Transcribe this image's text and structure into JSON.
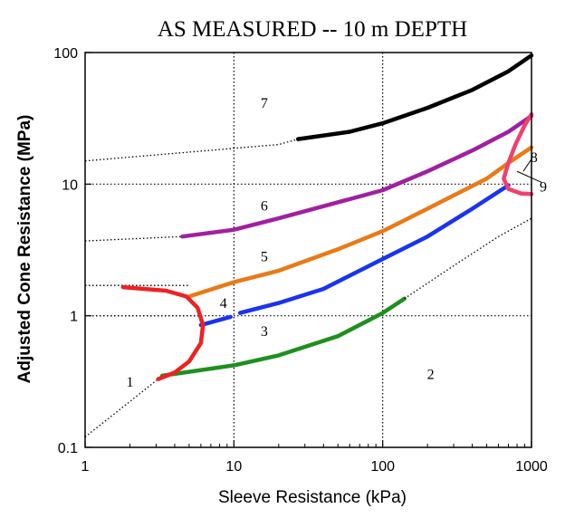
{
  "chart_data": {
    "type": "line",
    "title": "AS MEASURED -- 10 m DEPTH",
    "xlabel": "Sleeve Resistance  (kPa)",
    "ylabel": "Adjusted Cone Resistance  (MPa)",
    "xscale": "log",
    "yscale": "log",
    "xlim": [
      1,
      1000
    ],
    "ylim": [
      0.1,
      100
    ],
    "x_ticks": [
      "1",
      "10",
      "100",
      "1000"
    ],
    "y_ticks": [
      "0.1",
      "1",
      "10",
      "100"
    ],
    "grid": "dotted lines at decades (x = 10, 100; y = 1, 10)",
    "zone_labels": [
      {
        "text": "1",
        "x": 2.0,
        "y": 0.29
      },
      {
        "text": "2",
        "x": 210,
        "y": 0.33
      },
      {
        "text": "3",
        "x": 16,
        "y": 0.7
      },
      {
        "text": "4",
        "x": 8.5,
        "y": 1.15
      },
      {
        "text": "5",
        "x": 16,
        "y": 2.6
      },
      {
        "text": "6",
        "x": 16,
        "y": 6.3
      },
      {
        "text": "7",
        "x": 16,
        "y": 38
      },
      {
        "text": "8",
        "x": 1040,
        "y": 14.7
      },
      {
        "text": "9",
        "x": 1200,
        "y": 8.8
      }
    ],
    "series": [
      {
        "color": "#000000",
        "style": "dotted",
        "x": [
          1,
          20,
          27
        ],
        "y": [
          15,
          20,
          22
        ]
      },
      {
        "color": "#000000",
        "style": "solid",
        "x": [
          27,
          60,
          100,
          200,
          400,
          700,
          1000
        ],
        "y": [
          22,
          25,
          29,
          38,
          52,
          72,
          95
        ]
      },
      {
        "color": "#000000",
        "style": "dotted",
        "x": [
          1,
          4.5
        ],
        "y": [
          3.7,
          4.0
        ]
      },
      {
        "color": "#a020a0",
        "style": "solid",
        "x": [
          4.5,
          10,
          20,
          40,
          100,
          200,
          400,
          700,
          1000
        ],
        "y": [
          4.0,
          4.5,
          5.5,
          6.8,
          9.0,
          12.5,
          18,
          25,
          33
        ]
      },
      {
        "color": "#000000",
        "style": "dotted",
        "x": [
          1,
          5
        ],
        "y": [
          1.7,
          1.7
        ]
      },
      {
        "color": "#e87a18",
        "style": "solid",
        "x": [
          5,
          10,
          20,
          50,
          100,
          200,
          500,
          700,
          1000
        ],
        "y": [
          1.4,
          1.8,
          2.2,
          3.2,
          4.4,
          6.5,
          11,
          14.5,
          19
        ]
      },
      {
        "color": "#000000",
        "style": "dotted",
        "x": [
          1,
          6
        ],
        "y": [
          1.0,
          1.0
        ]
      },
      {
        "color": "#1a33ee",
        "style": "solid",
        "x": [
          6,
          9.5
        ],
        "y": [
          0.85,
          0.98
        ]
      },
      {
        "color": "#1a33ee",
        "style": "solid",
        "x": [
          11,
          20,
          40,
          100,
          200,
          400,
          700
        ],
        "y": [
          1.05,
          1.25,
          1.6,
          2.7,
          4.0,
          6.5,
          9.8
        ]
      },
      {
        "color": "#000000",
        "style": "dotted",
        "x": [
          1,
          3.1
        ],
        "y": [
          0.12,
          0.33
        ]
      },
      {
        "color": "#1f8f1f",
        "style": "solid",
        "x": [
          3.3,
          10,
          20,
          50,
          100,
          140
        ],
        "y": [
          0.35,
          0.42,
          0.5,
          0.7,
          1.05,
          1.35
        ]
      },
      {
        "color": "#000000",
        "style": "dotted",
        "x": [
          140,
          300,
          600,
          1000
        ],
        "y": [
          1.35,
          2.4,
          4.0,
          5.5
        ]
      },
      {
        "color": "#ee2222",
        "style": "solid",
        "x": [
          1.8,
          3.5,
          4.8,
          5.7,
          6.2,
          6.0,
          5.0,
          4.0,
          3.1
        ],
        "y": [
          1.65,
          1.55,
          1.4,
          1.15,
          0.85,
          0.62,
          0.45,
          0.37,
          0.33
        ]
      },
      {
        "color": "#f0406e",
        "style": "solid",
        "x": [
          1000,
          900,
          780,
          700,
          650,
          700,
          850,
          1000
        ],
        "y": [
          34,
          28,
          20,
          14.5,
          11,
          9.2,
          8.5,
          8.4
        ]
      }
    ]
  }
}
